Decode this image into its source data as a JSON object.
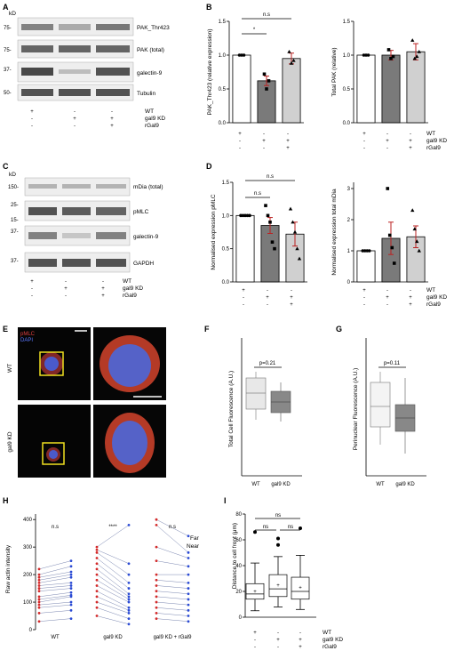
{
  "panelA": {
    "letter": "A",
    "kd": "kD",
    "mw": [
      "75-",
      "75-",
      "37-",
      "50-"
    ],
    "bands": [
      "PAK_Thr423",
      "PAK (total)",
      "galectin-9",
      "Tubulin"
    ],
    "cond": {
      "rows": [
        {
          "label": "WT",
          "marks": [
            "+",
            "-",
            "-"
          ]
        },
        {
          "label": "gal9 KD",
          "marks": [
            "-",
            "+",
            "+"
          ]
        },
        {
          "label": "rGal9",
          "marks": [
            "-",
            "-",
            "+"
          ]
        }
      ]
    }
  },
  "panelB": {
    "letter": "B",
    "left": {
      "ylabel": "PAK_Thr423 (relative expression)",
      "ticks": [
        "0.0",
        "0.5",
        "1.0",
        "1.5"
      ],
      "ns": "n.s",
      "star": "*",
      "values": [
        1.0,
        0.62,
        0.95
      ],
      "errors": [
        0,
        0.07,
        0.08
      ],
      "points": [
        [
          1,
          1,
          1
        ],
        [
          0.72,
          0.5,
          0.62
        ],
        [
          1.05,
          0.88,
          0.92
        ]
      ]
    },
    "right": {
      "ylabel": "Total PAK (relative)",
      "ticks": [
        "0.0",
        "0.5",
        "1.0",
        "1.5"
      ],
      "values": [
        1.0,
        1.0,
        1.05
      ],
      "errors": [
        0,
        0.07,
        0.12
      ],
      "points": [
        [
          1,
          1,
          1
        ],
        [
          1.08,
          0.95,
          0.98
        ],
        [
          1.22,
          0.95,
          0.98,
          1.05
        ]
      ]
    },
    "cond": {
      "rows": [
        {
          "label": "WT",
          "marks": [
            "+",
            "-",
            "-"
          ]
        },
        {
          "label": "gal9 KD",
          "marks": [
            "-",
            "+",
            "+"
          ]
        },
        {
          "label": "rGal9",
          "marks": [
            "-",
            "-",
            "+"
          ]
        }
      ]
    }
  },
  "panelC": {
    "letter": "C",
    "kd": "kD",
    "mw": [
      "150-",
      "25-",
      "15-",
      "37-",
      "37-"
    ],
    "bands": [
      "mDia (total)",
      "pMLC",
      "galectin-9",
      "GAPDH"
    ],
    "cond": {
      "rows": [
        {
          "label": "WT",
          "marks": [
            "+",
            "-",
            "-"
          ]
        },
        {
          "label": "gal9 KD",
          "marks": [
            "-",
            "+",
            "+"
          ]
        },
        {
          "label": "rGal9",
          "marks": [
            "-",
            "-",
            "+"
          ]
        }
      ]
    }
  },
  "panelD": {
    "letter": "D",
    "left": {
      "ylabel": "Normalised expression pMLC",
      "ticks": [
        "0.0",
        "0.5",
        "1.0",
        "1.5"
      ],
      "ns1": "n.s",
      "ns2": "n.s",
      "values": [
        1.0,
        0.85,
        0.72
      ],
      "errors": [
        0,
        0.12,
        0.18
      ],
      "points": [
        [
          1,
          1,
          1,
          1,
          1
        ],
        [
          1.15,
          1.0,
          0.9,
          0.6,
          0.5
        ],
        [
          1.1,
          0.9,
          0.75,
          0.5,
          0.35
        ]
      ]
    },
    "right": {
      "ylabel": "Normalised expression total mDia",
      "ticks": [
        "0",
        "1",
        "2",
        "3"
      ],
      "values": [
        1.0,
        1.4,
        1.45
      ],
      "errors": [
        0,
        0.52,
        0.35
      ],
      "points": [
        [
          1,
          1,
          1,
          1
        ],
        [
          3.0,
          1.5,
          1.1,
          0.6
        ],
        [
          2.3,
          1.7,
          1.3,
          1.0
        ]
      ]
    },
    "cond": {
      "rows": [
        {
          "label": "WT",
          "marks": [
            "+",
            "-",
            "-"
          ]
        },
        {
          "label": "gal9 KD",
          "marks": [
            "-",
            "+",
            "+"
          ]
        },
        {
          "label": "rGal9",
          "marks": [
            "-",
            "-",
            "+"
          ]
        }
      ]
    }
  },
  "panelE": {
    "letter": "E",
    "legend1": "pMLC",
    "legend2": "DAPI",
    "row1": "WT",
    "row2": "gal9 KD"
  },
  "panelF": {
    "letter": "F",
    "ylabel": "Total Cell Fluorescence (A.U.)",
    "p": "p=0.21",
    "cats": [
      "WT",
      "gal9 KD"
    ]
  },
  "panelG": {
    "letter": "G",
    "ylabel": "Perinuclear  Fluorescence (A.U.)",
    "p": "p=0.11",
    "cats": [
      "WT",
      "gal9 KD"
    ]
  },
  "panelH": {
    "letter": "H",
    "ylabel": "Raw actin intensity",
    "ticks": [
      "0",
      "100",
      "200",
      "300",
      "400"
    ],
    "cats": [
      "WT",
      "gal9 KD",
      "gal9 KD + rGal9"
    ],
    "sig": [
      "n.s",
      "****",
      "n.s"
    ],
    "legend": {
      "far": "Far",
      "near": "Near"
    },
    "colors": {
      "far": "#d42a2a",
      "near": "#2a4ad4"
    }
  },
  "panelI": {
    "letter": "I",
    "ylabel": "Distance to cell front (μm)",
    "ticks": [
      "0",
      "20",
      "40",
      "60",
      "80"
    ],
    "ns": [
      "ns",
      "ns",
      "ns"
    ],
    "cond": {
      "rows": [
        {
          "label": "WT",
          "marks": [
            "+",
            "-",
            "-"
          ]
        },
        {
          "label": "gal9 KD",
          "marks": [
            "-",
            "+",
            "+"
          ]
        },
        {
          "label": "rGal9",
          "marks": [
            "-",
            "-",
            "+"
          ]
        }
      ]
    }
  }
}
